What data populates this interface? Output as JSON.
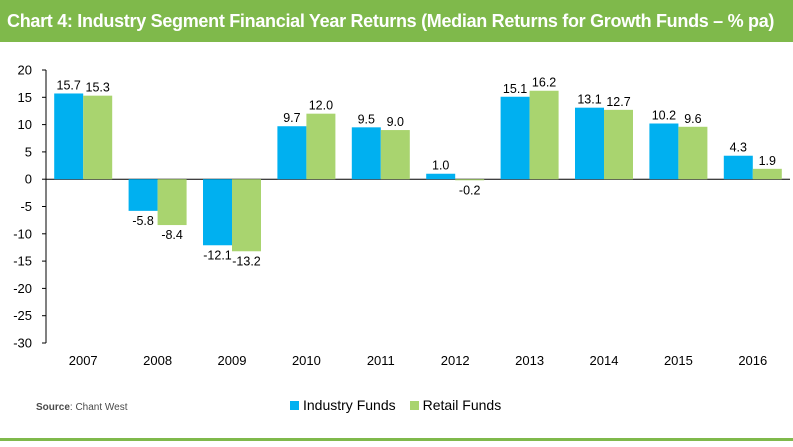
{
  "header": {
    "title": "Chart 4:  Industry Segment Financial Year Returns  (Median Returns for Growth Funds – % pa)"
  },
  "source": {
    "label": "Source",
    "text": ": Chant West"
  },
  "colors": {
    "header": "#7fb94b",
    "industry": "#00b0f0",
    "retail": "#a9d46f"
  },
  "chart_data": {
    "type": "bar",
    "title": "Industry Segment Financial Year Returns (Median Returns for Growth Funds – % pa)",
    "categories": [
      "2007",
      "2008",
      "2009",
      "2010",
      "2011",
      "2012",
      "2013",
      "2014",
      "2015",
      "2016"
    ],
    "series": [
      {
        "name": "Industry Funds",
        "values": [
          15.7,
          -5.8,
          -12.1,
          9.7,
          9.5,
          1.0,
          15.1,
          13.1,
          10.2,
          4.3
        ]
      },
      {
        "name": "Retail Funds",
        "values": [
          15.3,
          -8.4,
          -13.2,
          12.0,
          9.0,
          -0.2,
          16.2,
          12.7,
          9.6,
          1.9
        ]
      }
    ],
    "labels": [
      [
        "15.7",
        "-5.8",
        "-12.1",
        "9.7",
        "9.5",
        "1.0",
        "15.1",
        "13.1",
        "10.2",
        "4.3"
      ],
      [
        "15.3",
        "-8.4",
        "-13.2",
        "12.0",
        "9.0",
        "-0.2",
        "16.2",
        "12.7",
        "9.6",
        "1.9"
      ]
    ],
    "ylim": [
      -30,
      20
    ],
    "yticks": [
      20,
      15,
      10,
      5,
      0,
      -5,
      -10,
      -15,
      -20,
      -25,
      -30
    ],
    "xlabel": "",
    "ylabel": "",
    "legend": "bottom-center"
  }
}
